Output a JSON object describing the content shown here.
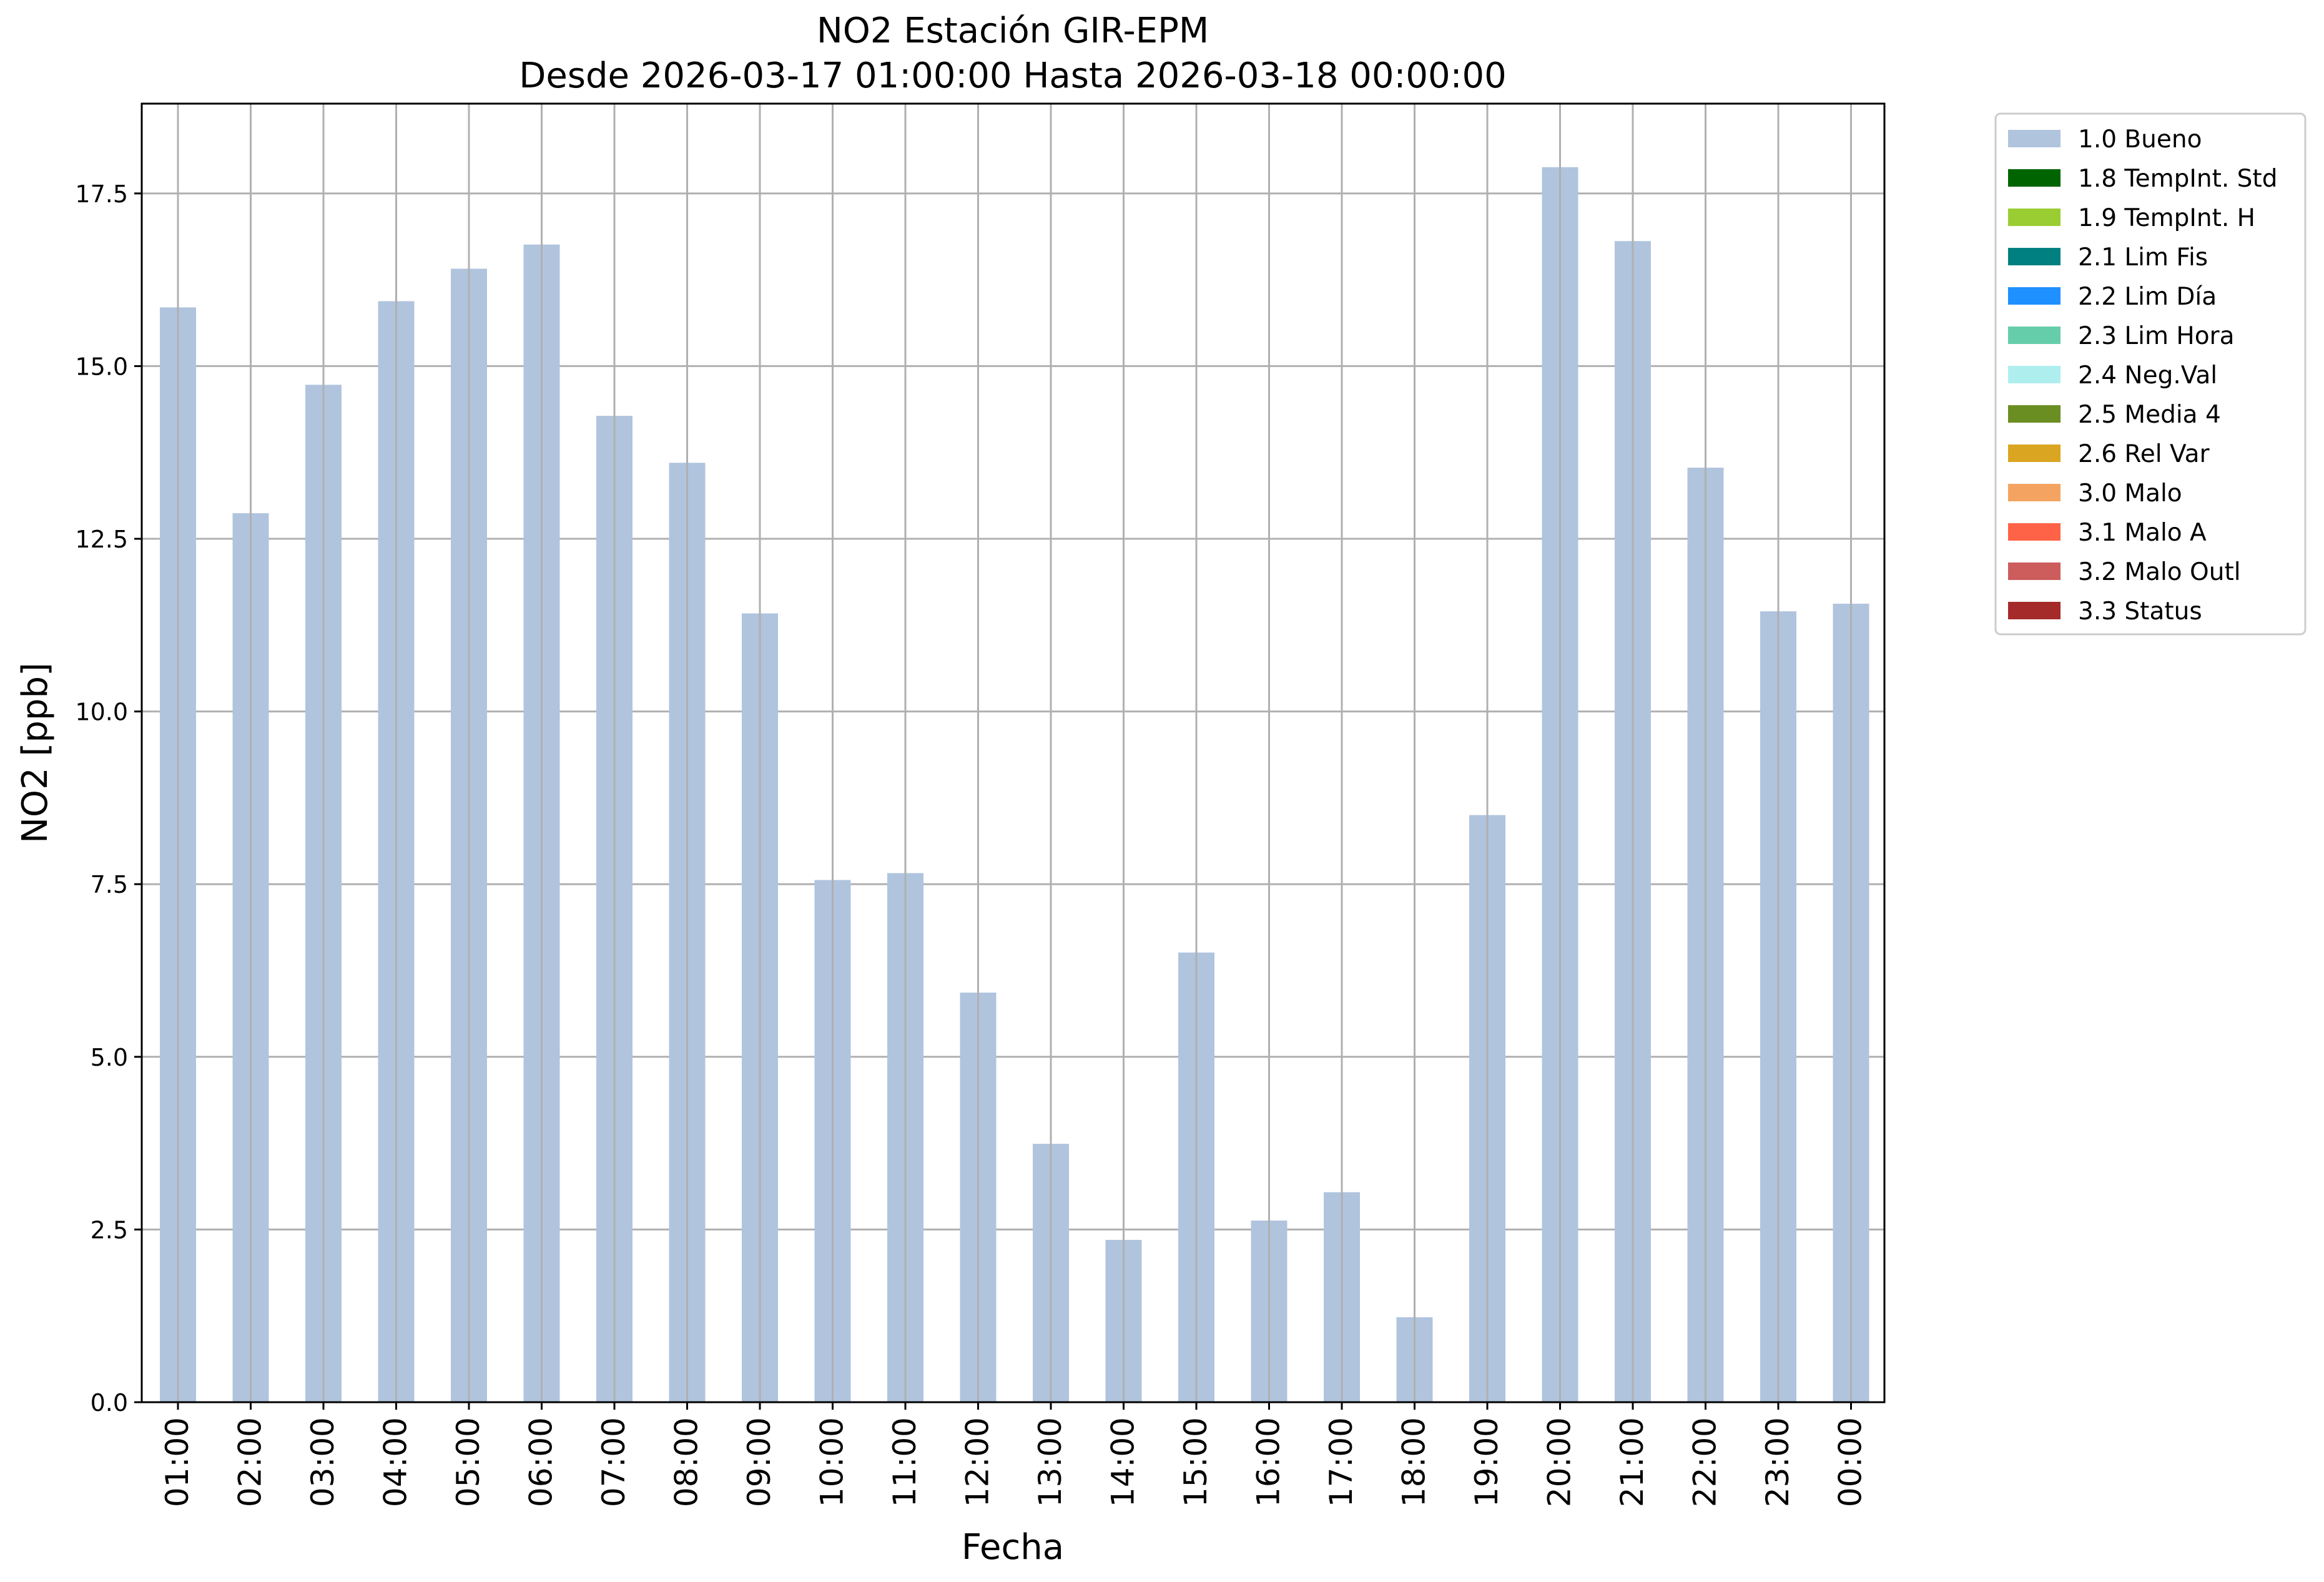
{
  "chart_data": {
    "type": "bar",
    "title_line1": "NO2 Estación GIR-EPM",
    "title_line2": "Desde 2026-03-17 01:00:00 Hasta 2026-03-18 00:00:00",
    "xlabel": "Fecha",
    "ylabel": "NO2 [ppb]",
    "ylim": [
      0,
      18.8
    ],
    "yticks": [
      "0.0",
      "2.5",
      "5.0",
      "7.5",
      "10.0",
      "12.5",
      "15.0",
      "17.5"
    ],
    "ytick_values": [
      0,
      2.5,
      5.0,
      7.5,
      10.0,
      12.5,
      15.0,
      17.5
    ],
    "grid": true,
    "legend_position": "outside-right-top",
    "categories": [
      "01:00",
      "02:00",
      "03:00",
      "04:00",
      "05:00",
      "06:00",
      "07:00",
      "08:00",
      "09:00",
      "10:00",
      "11:00",
      "12:00",
      "13:00",
      "14:00",
      "15:00",
      "16:00",
      "17:00",
      "18:00",
      "19:00",
      "20:00",
      "21:00",
      "22:00",
      "23:00",
      "00:00"
    ],
    "series": [
      {
        "name": "1.0 Bueno",
        "color": "#b0c4de",
        "values": [
          15.85,
          12.87,
          14.73,
          15.94,
          16.41,
          16.76,
          14.28,
          13.6,
          11.42,
          7.56,
          7.66,
          5.93,
          3.74,
          2.35,
          6.51,
          2.63,
          3.04,
          1.23,
          8.5,
          17.88,
          16.81,
          13.53,
          11.45,
          11.56
        ]
      }
    ],
    "legend": [
      {
        "label": "1.0 Bueno",
        "color": "#b0c4de"
      },
      {
        "label": "1.8 TempInt. Std",
        "color": "#006400"
      },
      {
        "label": "1.9 TempInt. H",
        "color": "#9acd32"
      },
      {
        "label": "2.1 Lim Fis",
        "color": "#008080"
      },
      {
        "label": "2.2 Lim Día",
        "color": "#1e90ff"
      },
      {
        "label": "2.3 Lim Hora",
        "color": "#66cdaa"
      },
      {
        "label": "2.4 Neg.Val",
        "color": "#afeeee"
      },
      {
        "label": "2.5 Media 4",
        "color": "#6b8e23"
      },
      {
        "label": "2.6 Rel Var",
        "color": "#daa520"
      },
      {
        "label": "3.0 Malo",
        "color": "#f4a460"
      },
      {
        "label": "3.1 Malo A",
        "color": "#ff6347"
      },
      {
        "label": "3.2 Malo Outl",
        "color": "#cd5c5c"
      },
      {
        "label": "3.3 Status",
        "color": "#a52a2a"
      }
    ]
  }
}
